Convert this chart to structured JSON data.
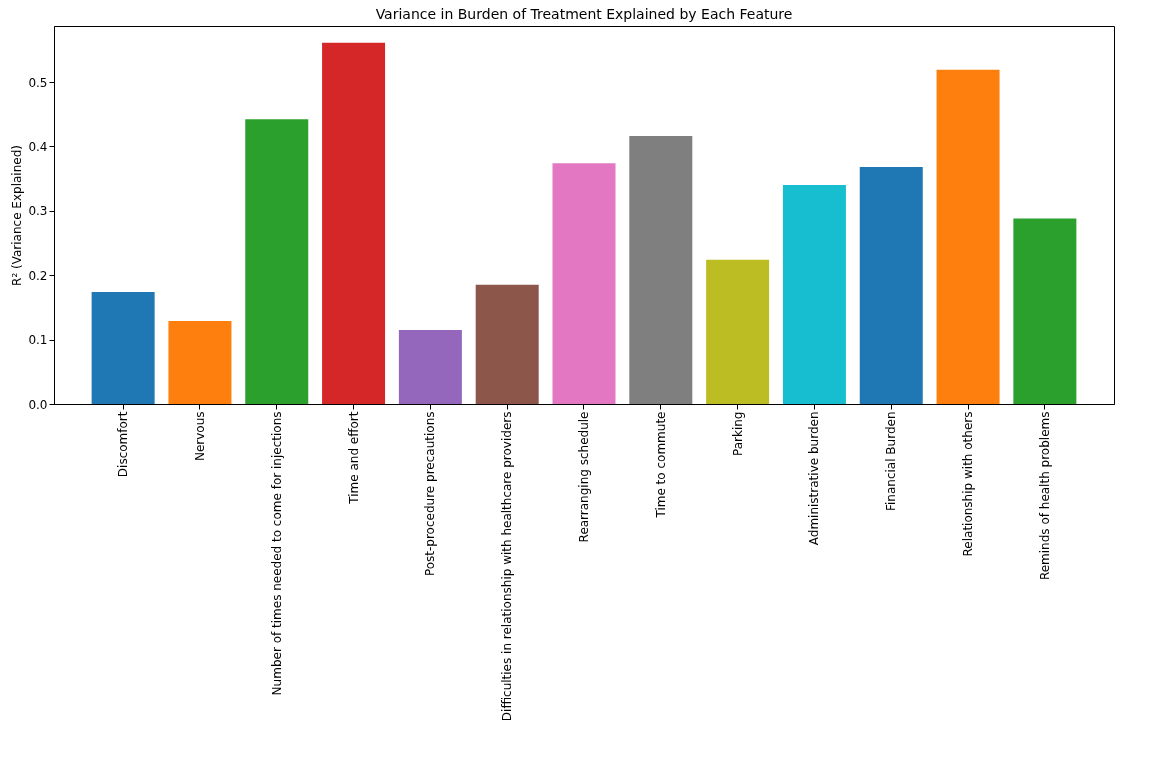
{
  "chart_data": {
    "type": "bar",
    "title": "Variance in Burden of Treatment Explained by Each Feature",
    "ylabel": "R² (Variance Explained)",
    "categories": [
      "Discomfort",
      "Nervous",
      "Number of times needed to come for injections",
      "Time and effort",
      "Post-procedure precautions",
      "Difficulties in relationship with healthcare providers",
      "Rearranging schedule",
      "Time to commute",
      "Parking",
      "Administrative burden",
      "Financial Burden",
      "Relationship with others",
      "Reminds of health problems"
    ],
    "values": [
      0.174,
      0.129,
      0.442,
      0.561,
      0.115,
      0.185,
      0.374,
      0.416,
      0.224,
      0.34,
      0.368,
      0.519,
      0.288
    ],
    "colors": [
      "#1f77b4",
      "#ff7f0e",
      "#2ca02c",
      "#d62728",
      "#9467bd",
      "#8c564b",
      "#e377c2",
      "#7f7f7f",
      "#bcbd22",
      "#17becf",
      "#1f77b4",
      "#ff7f0e",
      "#2ca02c"
    ],
    "ylim": [
      0,
      0.587
    ],
    "yticks": [
      {
        "value": 0,
        "label": "0.0"
      },
      {
        "value": 0.1,
        "label": "0.1"
      },
      {
        "value": 0.2,
        "label": "0.2"
      },
      {
        "value": 0.3,
        "label": "0.3"
      },
      {
        "value": 0.4,
        "label": "0.4"
      },
      {
        "value": 0.5,
        "label": "0.5"
      }
    ],
    "grid": false,
    "legend": false
  }
}
